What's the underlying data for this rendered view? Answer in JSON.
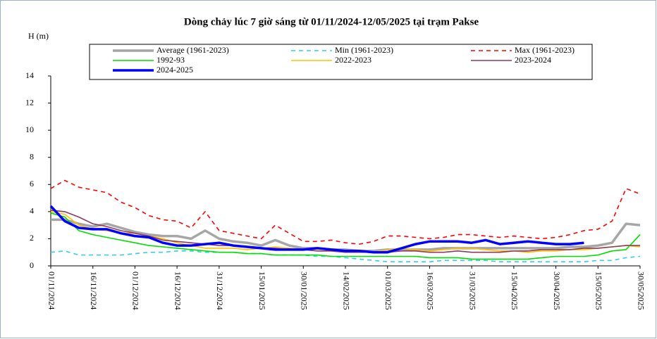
{
  "chart_data": {
    "type": "line",
    "title": "Dòng chảy lúc 7 giờ sáng từ 01/11/2024-12/05/2025 tại trạm Pakse",
    "y_label": "H (m)",
    "x": [
      "01/11/2024",
      "06/11/2024",
      "11/11/2024",
      "16/11/2024",
      "21/11/2024",
      "26/11/2024",
      "01/12/2024",
      "06/12/2024",
      "11/12/2024",
      "16/12/2024",
      "21/12/2024",
      "26/12/2024",
      "31/12/2024",
      "05/01/2025",
      "10/01/2025",
      "15/01/2025",
      "20/01/2025",
      "25/01/2025",
      "30/01/2025",
      "04/02/2025",
      "09/02/2025",
      "14/02/2025",
      "19/02/2025",
      "24/02/2025",
      "01/03/2025",
      "06/03/2025",
      "11/03/2025",
      "16/03/2025",
      "21/03/2025",
      "26/03/2025",
      "31/03/2025",
      "05/04/2025",
      "10/04/2025",
      "15/04/2025",
      "20/04/2025",
      "25/04/2025",
      "30/04/2025",
      "05/05/2025",
      "10/05/2025",
      "15/05/2025",
      "20/05/2025",
      "25/05/2025",
      "30/05/2025"
    ],
    "xlim": [
      "01/11/2024",
      "30/05/2025"
    ],
    "xticks": [
      "01/11/2024",
      "16/11/2024",
      "01/12/2024",
      "16/12/2024",
      "31/12/2024",
      "15/01/2025",
      "30/01/2025",
      "14/02/2025",
      "01/03/2025",
      "16/03/2025",
      "31/03/2025",
      "15/04/2025",
      "30/04/2025",
      "15/05/2025",
      "30/05/2025"
    ],
    "ylim": [
      0,
      14
    ],
    "yticks": [
      0,
      2,
      4,
      6,
      8,
      10,
      12,
      14
    ],
    "series": [
      {
        "name": "Average (1961-2023)",
        "color": "#a6a6a6",
        "style": "bold",
        "values": [
          3.4,
          3.4,
          3.1,
          2.9,
          3.1,
          2.8,
          2.5,
          2.3,
          2.2,
          2.2,
          2.0,
          2.6,
          2.0,
          1.8,
          1.7,
          1.5,
          1.9,
          1.5,
          1.3,
          1.3,
          1.2,
          1.2,
          1.1,
          1.1,
          1.2,
          1.2,
          1.2,
          1.2,
          1.3,
          1.3,
          1.3,
          1.3,
          1.3,
          1.3,
          1.3,
          1.3,
          1.3,
          1.4,
          1.4,
          1.5,
          1.7,
          3.1,
          3.0
        ]
      },
      {
        "name": "Min (1961-2023)",
        "color": "#33ccee",
        "style": "dashed",
        "values": [
          1.0,
          1.1,
          0.8,
          0.8,
          0.8,
          0.8,
          0.9,
          1.0,
          1.0,
          1.1,
          1.1,
          1.0,
          1.0,
          1.0,
          0.9,
          0.9,
          0.8,
          0.8,
          0.8,
          0.7,
          0.7,
          0.6,
          0.5,
          0.4,
          0.3,
          0.3,
          0.3,
          0.3,
          0.4,
          0.4,
          0.4,
          0.4,
          0.3,
          0.3,
          0.3,
          0.3,
          0.3,
          0.3,
          0.3,
          0.4,
          0.4,
          0.6,
          0.7
        ]
      },
      {
        "name": "Max (1961-2023)",
        "color": "#ff0000",
        "style": "dashed",
        "values": [
          5.7,
          6.3,
          5.8,
          5.6,
          5.4,
          4.7,
          4.3,
          3.7,
          3.4,
          3.3,
          2.8,
          4.0,
          2.6,
          2.4,
          2.2,
          2.0,
          3.0,
          2.4,
          1.8,
          1.8,
          1.9,
          1.7,
          1.6,
          1.8,
          2.2,
          2.2,
          2.1,
          2.0,
          2.1,
          2.3,
          2.3,
          2.2,
          2.1,
          2.2,
          2.1,
          2.0,
          2.1,
          2.3,
          2.6,
          2.7,
          3.3,
          5.7,
          5.3
        ]
      },
      {
        "name": "1992-93",
        "color": "#00dd00",
        "style": "solid",
        "values": [
          3.9,
          3.6,
          2.6,
          2.3,
          2.1,
          1.9,
          1.7,
          1.5,
          1.4,
          1.3,
          1.2,
          1.1,
          1.0,
          1.0,
          0.9,
          0.9,
          0.8,
          0.8,
          0.8,
          0.8,
          0.7,
          0.7,
          0.7,
          0.7,
          0.7,
          0.7,
          0.7,
          0.6,
          0.6,
          0.6,
          0.5,
          0.5,
          0.5,
          0.5,
          0.5,
          0.6,
          0.7,
          0.7,
          0.7,
          0.8,
          1.1,
          1.2,
          2.3
        ]
      },
      {
        "name": "2022-2023",
        "color": "#ffc000",
        "style": "solid",
        "values": [
          4.0,
          3.8,
          3.0,
          2.7,
          2.6,
          2.4,
          2.4,
          2.2,
          2.0,
          1.7,
          1.5,
          1.3,
          1.3,
          1.3,
          1.2,
          1.3,
          1.4,
          1.3,
          1.2,
          1.1,
          1.1,
          1.0,
          1.0,
          1.0,
          1.2,
          1.3,
          1.2,
          1.1,
          1.2,
          1.3,
          1.3,
          1.2,
          1.1,
          1.1,
          1.0,
          1.1,
          1.1,
          1.2,
          1.2,
          1.3,
          1.4,
          1.5,
          1.4
        ]
      },
      {
        "name": "2023-2024",
        "color": "#8b3a62",
        "style": "solid",
        "values": [
          4.1,
          4.0,
          3.6,
          3.1,
          2.9,
          2.6,
          2.4,
          2.2,
          1.9,
          1.8,
          1.7,
          1.6,
          1.5,
          1.5,
          1.4,
          1.3,
          1.3,
          1.2,
          1.2,
          1.1,
          1.1,
          1.0,
          1.0,
          1.0,
          1.0,
          1.1,
          1.1,
          1.0,
          1.0,
          1.1,
          1.0,
          1.0,
          1.0,
          1.1,
          1.1,
          1.2,
          1.2,
          1.2,
          1.3,
          1.3,
          1.4,
          1.5,
          1.5
        ]
      },
      {
        "name": "2024-2025",
        "color": "#0000ff",
        "style": "bold",
        "values": [
          4.4,
          3.3,
          2.8,
          2.7,
          2.7,
          2.4,
          2.2,
          2.1,
          1.7,
          1.5,
          1.5,
          1.6,
          1.7,
          1.5,
          1.4,
          1.3,
          1.2,
          1.2,
          1.2,
          1.3,
          1.2,
          1.1,
          1.1,
          1.0,
          1.0,
          1.3,
          1.6,
          1.8,
          1.8,
          1.8,
          1.7,
          1.9,
          1.6,
          1.7,
          1.8,
          1.7,
          1.6,
          1.6,
          1.7,
          null,
          null,
          null,
          null
        ]
      }
    ]
  }
}
